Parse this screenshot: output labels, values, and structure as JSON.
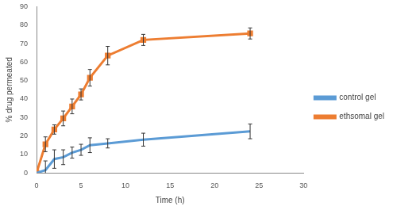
{
  "chart_data": {
    "type": "line",
    "x_label": "Time (h)",
    "y_label": "% drug permeated",
    "x": [
      0,
      1,
      2,
      3,
      4,
      5,
      6,
      8,
      12,
      24
    ],
    "series": [
      {
        "name": "control gel",
        "color": "#5b9bd5",
        "marker": "none",
        "values": [
          0,
          1.5,
          7.5,
          8.5,
          11,
          12.5,
          15,
          16,
          18,
          22.5
        ],
        "errors": [
          0,
          5,
          5,
          4,
          3,
          3,
          4,
          2.5,
          3.5,
          4
        ]
      },
      {
        "name": "ethsomal gel",
        "color": "#ed7d31",
        "marker": "square",
        "values": [
          0,
          15.5,
          23.5,
          29.5,
          36,
          42.5,
          51.5,
          63.5,
          72,
          75.5
        ],
        "errors": [
          0,
          4,
          2.5,
          4,
          4,
          3,
          4.5,
          5,
          3,
          3
        ]
      }
    ],
    "xlim": [
      0,
      30
    ],
    "xticks": [
      0,
      5,
      10,
      15,
      20,
      25,
      30
    ],
    "ylim": [
      0,
      90
    ],
    "yticks": [
      0,
      10,
      20,
      30,
      40,
      50,
      60,
      70,
      80,
      90
    ],
    "grid": false,
    "legend": "right"
  }
}
